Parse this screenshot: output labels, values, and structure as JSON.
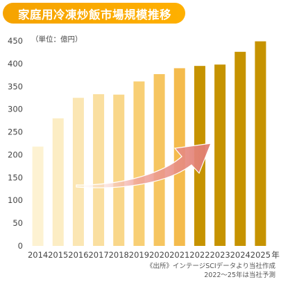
{
  "title": "家庭用冷凍炒飯市場規模推移",
  "unit_label": "（単位：億円）",
  "source_note_1": "《出所》インテージSCIデータより当社作成",
  "source_note_2": "2022〜25年は当社予測",
  "colors": {
    "title_bg": "#f5a300",
    "actual_bars": [
      "#fdf2d2",
      "#fcedc4",
      "#fbe6b3",
      "#fadfa0",
      "#f9d78a",
      "#f8cf75",
      "#f6c560",
      "#f4bb4d"
    ],
    "forecast_bar": "#c69300",
    "arrow": "#e98a80"
  },
  "chart_data": {
    "type": "bar",
    "categories": [
      "2014",
      "2015",
      "2016",
      "2017",
      "2018",
      "2019",
      "2020",
      "2021",
      "2022",
      "2023",
      "2024",
      "2025"
    ],
    "x_unit_suffix": "年",
    "values": [
      218,
      280,
      325,
      333,
      332,
      361,
      377,
      390,
      395,
      398,
      426,
      449
    ],
    "forecast_start_index": 8,
    "ylim": [
      0,
      450
    ],
    "yticks": [
      0,
      50,
      100,
      150,
      200,
      250,
      300,
      350,
      400,
      450
    ],
    "grid": false,
    "legend": "none",
    "annotation": "upward trend arrow from 2016 to 2023"
  }
}
